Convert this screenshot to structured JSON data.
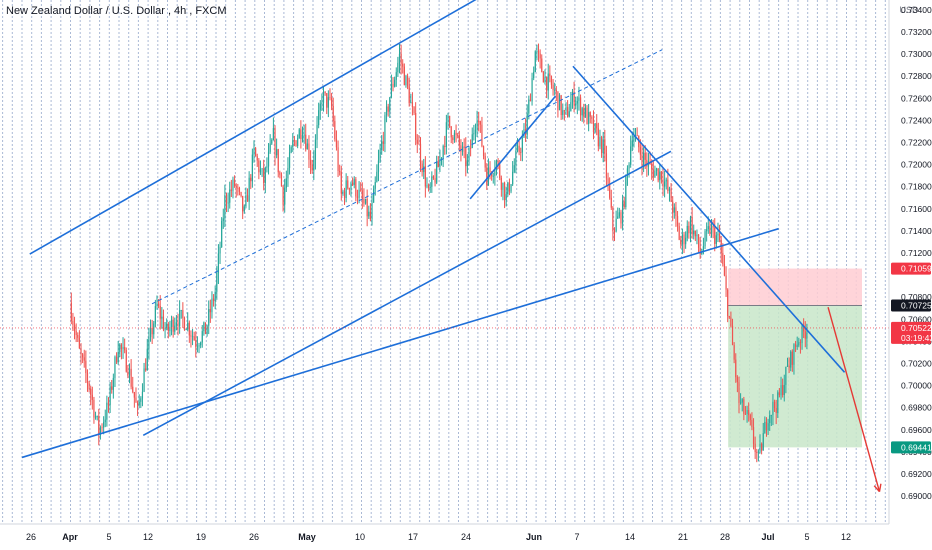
{
  "header": {
    "symbol_name": "New Zealand Dollar / U.S. Dollar",
    "timeframe": "4h",
    "exchange": "FXCM",
    "currency": "USD"
  },
  "chart_data": {
    "type": "candlestick",
    "title": "New Zealand Dollar / U.S. Dollar, 4h, FXCM",
    "y_axis": {
      "unit": "USD",
      "range": [
        0.689,
        0.736
      ],
      "ticks": [
        "0.69000",
        "0.69200",
        "0.69400",
        "0.69600",
        "0.69800",
        "0.70000",
        "0.70200",
        "0.70400",
        "0.70600",
        "0.70800",
        "0.71200",
        "0.71400",
        "0.71600",
        "0.71800",
        "0.72000",
        "0.72200",
        "0.72400",
        "0.72600",
        "0.72800",
        "0.73000",
        "0.73200",
        "0.73400",
        "0.73600"
      ]
    },
    "x_axis": {
      "ticks": [
        "26",
        "Apr",
        "5",
        "12",
        "19",
        "26",
        "May",
        "10",
        "17",
        "24",
        "Jun",
        "7",
        "14",
        "21",
        "28",
        "Jul",
        "5",
        "12"
      ]
    },
    "grid": true,
    "price_labels": [
      {
        "label": "0.71059",
        "value": 0.71059,
        "color": "#f23645",
        "role": "stop-loss"
      },
      {
        "label": "0.70725",
        "value": 0.70725,
        "color": "#131722",
        "role": "entry"
      },
      {
        "label": "0.70522",
        "value": 0.70522,
        "color": "#f23645",
        "role": "last-price",
        "countdown": "03:19:43"
      },
      {
        "label": "0.69441",
        "value": 0.69441,
        "color": "#089981",
        "role": "take-profit"
      }
    ],
    "position": {
      "type": "short",
      "entry": 0.70725,
      "stop": 0.71059,
      "target": 0.69441
    },
    "colors": {
      "up": "#26a69a",
      "down": "#ef5350",
      "trendline": "#1e6fd9",
      "projection": "#e53935",
      "risk_zone": "#ffcdd2",
      "reward_zone": "#c8e6c9",
      "grid_vertical": "#8ea2c8"
    },
    "anchors": [
      {
        "d": 0,
        "p": 0.7075
      },
      {
        "d": 1,
        "p": 0.703
      },
      {
        "d": 2,
        "p": 0.7
      },
      {
        "d": 3,
        "p": 0.6958
      },
      {
        "d": 4,
        "p": 0.6982
      },
      {
        "d": 5,
        "p": 0.7038
      },
      {
        "d": 6,
        "p": 0.7018
      },
      {
        "d": 7,
        "p": 0.6975
      },
      {
        "d": 8,
        "p": 0.703
      },
      {
        "d": 9,
        "p": 0.7072
      },
      {
        "d": 10,
        "p": 0.7048
      },
      {
        "d": 11,
        "p": 0.7062
      },
      {
        "d": 12,
        "p": 0.7058
      },
      {
        "d": 13,
        "p": 0.704
      },
      {
        "d": 14,
        "p": 0.705
      },
      {
        "d": 15,
        "p": 0.7085
      },
      {
        "d": 16,
        "p": 0.7168
      },
      {
        "d": 17,
        "p": 0.7182
      },
      {
        "d": 18,
        "p": 0.7155
      },
      {
        "d": 19,
        "p": 0.721
      },
      {
        "d": 20,
        "p": 0.7185
      },
      {
        "d": 21,
        "p": 0.7225
      },
      {
        "d": 22,
        "p": 0.7172
      },
      {
        "d": 23,
        "p": 0.7218
      },
      {
        "d": 24,
        "p": 0.7235
      },
      {
        "d": 25,
        "p": 0.7198
      },
      {
        "d": 26,
        "p": 0.7262
      },
      {
        "d": 27,
        "p": 0.7252
      },
      {
        "d": 28,
        "p": 0.7172
      },
      {
        "d": 29,
        "p": 0.7186
      },
      {
        "d": 30,
        "p": 0.717
      },
      {
        "d": 31,
        "p": 0.715
      },
      {
        "d": 32,
        "p": 0.721
      },
      {
        "d": 33,
        "p": 0.7262
      },
      {
        "d": 34,
        "p": 0.7298
      },
      {
        "d": 35,
        "p": 0.7262
      },
      {
        "d": 36,
        "p": 0.7215
      },
      {
        "d": 37,
        "p": 0.7172
      },
      {
        "d": 38,
        "p": 0.7198
      },
      {
        "d": 39,
        "p": 0.7238
      },
      {
        "d": 40,
        "p": 0.722
      },
      {
        "d": 41,
        "p": 0.72
      },
      {
        "d": 42,
        "p": 0.7248
      },
      {
        "d": 43,
        "p": 0.719
      },
      {
        "d": 44,
        "p": 0.7202
      },
      {
        "d": 45,
        "p": 0.717
      },
      {
        "d": 46,
        "p": 0.7205
      },
      {
        "d": 47,
        "p": 0.723
      },
      {
        "d": 48,
        "p": 0.7302
      },
      {
        "d": 49,
        "p": 0.7278
      },
      {
        "d": 50,
        "p": 0.7266
      },
      {
        "d": 51,
        "p": 0.7242
      },
      {
        "d": 52,
        "p": 0.7262
      },
      {
        "d": 53,
        "p": 0.7248
      },
      {
        "d": 54,
        "p": 0.7232
      },
      {
        "d": 55,
        "p": 0.7215
      },
      {
        "d": 56,
        "p": 0.7142
      },
      {
        "d": 57,
        "p": 0.7158
      },
      {
        "d": 58,
        "p": 0.723
      },
      {
        "d": 59,
        "p": 0.7208
      },
      {
        "d": 60,
        "p": 0.7195
      },
      {
        "d": 61,
        "p": 0.7192
      },
      {
        "d": 62,
        "p": 0.7168
      },
      {
        "d": 63,
        "p": 0.7128
      },
      {
        "d": 64,
        "p": 0.7148
      },
      {
        "d": 65,
        "p": 0.712
      },
      {
        "d": 66,
        "p": 0.7142
      },
      {
        "d": 67,
        "p": 0.713
      },
      {
        "d": 68,
        "p": 0.706
      },
      {
        "d": 69,
        "p": 0.6985
      },
      {
        "d": 70,
        "p": 0.6968
      },
      {
        "d": 71,
        "p": 0.6932
      },
      {
        "d": 72,
        "p": 0.6975
      },
      {
        "d": 73,
        "p": 0.6985
      },
      {
        "d": 74,
        "p": 0.7015
      },
      {
        "d": 75,
        "p": 0.704
      },
      {
        "d": 76,
        "p": 0.7052
      }
    ],
    "trendlines": [
      {
        "name": "channel-upper",
        "from": {
          "d": -4.2,
          "p": 0.7119
        },
        "to": {
          "d": 43.9,
          "p": 0.736
        }
      },
      {
        "name": "channel-lower",
        "from": {
          "d": 7.5,
          "p": 0.6955
        },
        "to": {
          "d": 61.9,
          "p": 0.7212
        }
      },
      {
        "name": "channel-mid",
        "from": {
          "d": 8.4,
          "p": 0.7074
        },
        "to": {
          "d": 61.0,
          "p": 0.7304
        },
        "dashed": true
      },
      {
        "name": "long-support",
        "from": {
          "d": -5.0,
          "p": 0.6935
        },
        "to": {
          "d": 73.0,
          "p": 0.7142
        }
      },
      {
        "name": "down-trend",
        "from": {
          "d": 51.8,
          "p": 0.7289
        },
        "to": {
          "d": 79.8,
          "p": 0.7012
        }
      },
      {
        "name": "minor-rising",
        "from": {
          "d": 41.2,
          "p": 0.7169
        },
        "to": {
          "d": 50.0,
          "p": 0.7262
        }
      }
    ],
    "projection": {
      "from": {
        "d": 78.1,
        "p": 0.7071
      },
      "to": {
        "d": 83.4,
        "p": 0.6904
      }
    }
  }
}
